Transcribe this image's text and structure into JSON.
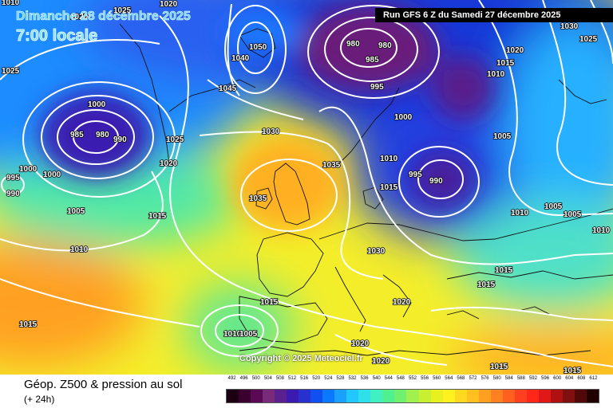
{
  "header": {
    "valid_date": "Dimanche 28 décembre 2025",
    "valid_time": "7:00 locale",
    "run_info": "Run GFS 6 Z du Samedi 27 décembre 2025"
  },
  "copyright": "Copyright © 2025 Meteociel.fr",
  "footer": {
    "product_title": "Géop. Z500 & pression au sol",
    "forecast_step": "(+ 24h)"
  },
  "legend": {
    "ticks": [
      "492",
      "496",
      "500",
      "504",
      "508",
      "512",
      "516",
      "520",
      "524",
      "528",
      "532",
      "536",
      "540",
      "544",
      "548",
      "552",
      "556",
      "560",
      "564",
      "568",
      "572",
      "576",
      "580",
      "584",
      "588",
      "592",
      "596",
      "600",
      "604",
      "608",
      "612"
    ],
    "colors": [
      "#1a0010",
      "#3a0030",
      "#5a0a55",
      "#7a2a7a",
      "#5a2090",
      "#3a1ab0",
      "#2830d0",
      "#1050f0",
      "#0a78ff",
      "#1aa0ff",
      "#20c8ff",
      "#30e0e8",
      "#40f0c0",
      "#50f090",
      "#70f070",
      "#a0f050",
      "#c8f030",
      "#e8f020",
      "#fff020",
      "#ffd820",
      "#ffc020",
      "#ffa020",
      "#ff8020",
      "#ff6020",
      "#ff4020",
      "#ff2818",
      "#e01818",
      "#b01010",
      "#801010",
      "#500808",
      "#200000"
    ]
  },
  "isobars": [
    {
      "label": "1020"
    },
    {
      "label": "1025"
    },
    {
      "label": "1020"
    },
    {
      "label": "1010"
    },
    {
      "label": "1025"
    },
    {
      "label": "1000"
    },
    {
      "label": "985"
    },
    {
      "label": "980"
    },
    {
      "label": "990"
    },
    {
      "label": "1000"
    },
    {
      "label": "1000"
    },
    {
      "label": "995"
    },
    {
      "label": "990"
    },
    {
      "label": "1005"
    },
    {
      "label": "1010"
    },
    {
      "label": "1015"
    },
    {
      "label": "1020"
    },
    {
      "label": "1025"
    },
    {
      "label": "1045"
    },
    {
      "label": "1050"
    },
    {
      "label": "1040"
    },
    {
      "label": "1030"
    },
    {
      "label": "1035"
    },
    {
      "label": "1035"
    },
    {
      "label": "1010"
    },
    {
      "label": "1015"
    },
    {
      "label": "1030"
    },
    {
      "label": "1020"
    },
    {
      "label": "1015"
    },
    {
      "label": "1010"
    },
    {
      "label": "1005"
    },
    {
      "label": "1015"
    },
    {
      "label": "1020"
    },
    {
      "label": "1020"
    },
    {
      "label": "980"
    },
    {
      "label": "985"
    },
    {
      "label": "980"
    },
    {
      "label": "995"
    },
    {
      "label": "1000"
    },
    {
      "label": "995"
    },
    {
      "label": "990"
    },
    {
      "label": "1005"
    },
    {
      "label": "1010"
    },
    {
      "label": "1005"
    },
    {
      "label": "1005"
    },
    {
      "label": "1010"
    },
    {
      "label": "1015"
    },
    {
      "label": "1015"
    },
    {
      "label": "1015"
    },
    {
      "label": "1015"
    },
    {
      "label": "1030"
    },
    {
      "label": "1025"
    },
    {
      "label": "1020"
    },
    {
      "label": "1015"
    },
    {
      "label": "1010"
    }
  ]
}
